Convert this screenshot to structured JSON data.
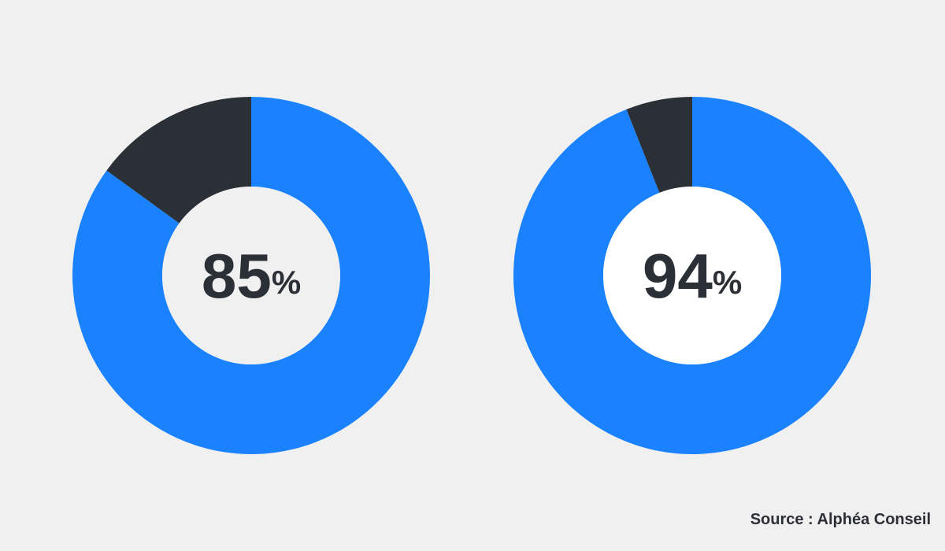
{
  "chart_data": [
    {
      "type": "donut",
      "values": [
        85,
        15
      ],
      "colors": [
        "#1a82ff",
        "#2b2f36"
      ],
      "value_labels": [
        "85%",
        null
      ]
    },
    {
      "type": "donut",
      "values": [
        94,
        6
      ],
      "colors": [
        "#1a82ff",
        "#2b2f36"
      ],
      "value_labels": [
        "94%",
        null
      ]
    }
  ],
  "source": "Source : Alphéa Conseil"
}
